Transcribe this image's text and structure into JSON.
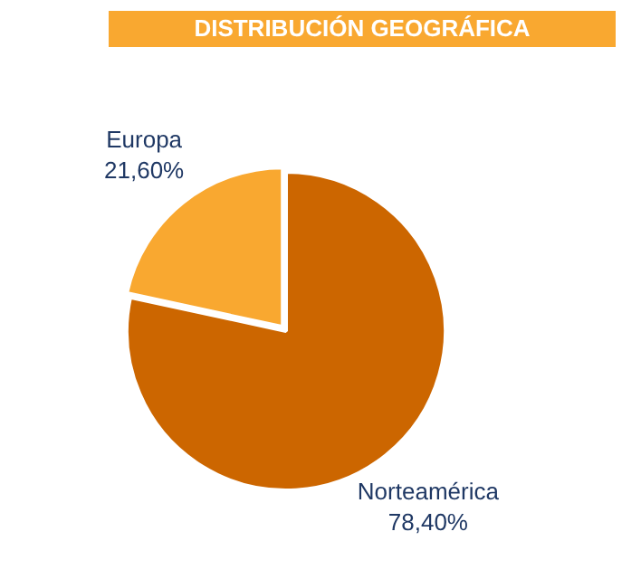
{
  "chart_data": {
    "type": "pie",
    "title": "DISTRIBUCIÓN GEOGRÁFICA",
    "categories": [
      "Norteamérica",
      "Europa"
    ],
    "values": [
      78.4,
      21.6
    ],
    "value_labels": [
      "78,40%",
      "21,60%"
    ],
    "colors": [
      "#cc6600",
      "#f9a830"
    ],
    "legend": false
  }
}
